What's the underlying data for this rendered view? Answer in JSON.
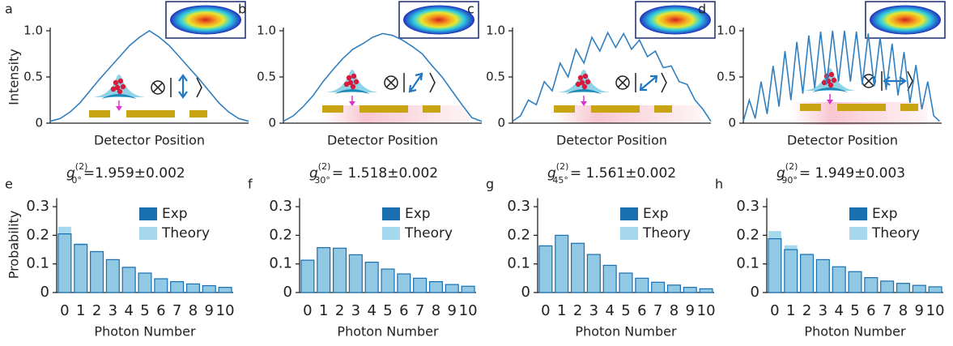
{
  "chart_data": [
    {
      "type": "line",
      "panel_label": "a",
      "ylabel": "Intensity",
      "xlabel": "Detector Position",
      "color": "#2f7fc1",
      "x": [
        0,
        5,
        10,
        15,
        20,
        25,
        30,
        35,
        40,
        45,
        50,
        55,
        60,
        65,
        70,
        75,
        80,
        85,
        90,
        95,
        100
      ],
      "series": [
        {
          "color": "#2f7fc1",
          "values": [
            0.02,
            0.05,
            0.12,
            0.22,
            0.35,
            0.48,
            0.6,
            0.72,
            0.84,
            0.93,
            1.0,
            0.93,
            0.84,
            0.72,
            0.6,
            0.48,
            0.35,
            0.22,
            0.12,
            0.05,
            0.02
          ]
        }
      ],
      "xlim": [
        0,
        100
      ],
      "ylim": [
        0,
        1
      ],
      "yticks": [
        0,
        0.5,
        {
          "value": 1,
          "label": "1.0"
        }
      ]
    },
    {
      "type": "line",
      "panel_label": "b",
      "xlabel": "Detector Position",
      "x": [
        0,
        5,
        10,
        15,
        20,
        25,
        30,
        35,
        40,
        45,
        50,
        55,
        60,
        65,
        70,
        75,
        80,
        85,
        90,
        95,
        100
      ],
      "series": [
        {
          "color": "#2f7fc1",
          "values": [
            0.02,
            0.08,
            0.18,
            0.3,
            0.45,
            0.58,
            0.7,
            0.8,
            0.86,
            0.93,
            0.97,
            0.95,
            0.9,
            0.83,
            0.75,
            0.62,
            0.5,
            0.35,
            0.2,
            0.06,
            0.02
          ]
        }
      ],
      "xlim": [
        0,
        100
      ],
      "ylim": [
        0,
        1
      ],
      "yticks": [
        0,
        0.5,
        {
          "value": 1,
          "label": "1.0"
        }
      ]
    },
    {
      "type": "line",
      "panel_label": "c",
      "xlabel": "Detector Position",
      "x": [
        0,
        4,
        8,
        12,
        16,
        20,
        24,
        28,
        32,
        36,
        40,
        44,
        48,
        52,
        56,
        60,
        64,
        68,
        72,
        76,
        80,
        84,
        88,
        92,
        96,
        100
      ],
      "series": [
        {
          "color": "#2f7fc1",
          "values": [
            0.02,
            0.08,
            0.25,
            0.2,
            0.45,
            0.35,
            0.65,
            0.5,
            0.8,
            0.65,
            0.93,
            0.78,
            0.98,
            0.82,
            0.97,
            0.8,
            0.9,
            0.72,
            0.78,
            0.6,
            0.62,
            0.45,
            0.42,
            0.25,
            0.15,
            0.02
          ]
        }
      ],
      "xlim": [
        0,
        100
      ],
      "ylim": [
        0,
        1
      ],
      "yticks": [
        0,
        0.5,
        {
          "value": 1,
          "label": "1.0"
        }
      ]
    },
    {
      "type": "line",
      "panel_label": "d",
      "xlabel": "Detector Position",
      "x": [
        0,
        3,
        6,
        9,
        12,
        15,
        18,
        21,
        24,
        27,
        30,
        33,
        36,
        39,
        42,
        45,
        48,
        51,
        54,
        57,
        60,
        63,
        66,
        69,
        72,
        75,
        78,
        81,
        84,
        87,
        90,
        93,
        96,
        99
      ],
      "series": [
        {
          "color": "#2f7fc1",
          "values": [
            0.02,
            0.25,
            0.05,
            0.45,
            0.1,
            0.62,
            0.18,
            0.78,
            0.25,
            0.88,
            0.32,
            0.95,
            0.38,
            0.99,
            0.42,
            1.0,
            0.45,
            1.0,
            0.45,
            0.99,
            0.42,
            0.97,
            0.4,
            0.93,
            0.36,
            0.86,
            0.3,
            0.77,
            0.22,
            0.63,
            0.15,
            0.45,
            0.08,
            0.02
          ]
        }
      ],
      "xlim": [
        0,
        100
      ],
      "ylim": [
        0,
        1
      ],
      "yticks": [
        0,
        0.5,
        {
          "value": 1,
          "label": "1.0"
        }
      ]
    },
    {
      "type": "bar",
      "panel_label": "e",
      "title": "g",
      "title_superscript": "(2)",
      "title_subscript": "0°",
      "title_value": "=1.959±0.002",
      "ylabel": "Probability",
      "xlabel": "Photon Number",
      "categories": [
        "0",
        "1",
        "2",
        "3",
        "4",
        "5",
        "6",
        "7",
        "8",
        "9",
        "10"
      ],
      "series": [
        {
          "name": "Exp",
          "color": "#1a6fb0",
          "values": [
            0.205,
            0.168,
            0.143,
            0.115,
            0.088,
            0.068,
            0.048,
            0.038,
            0.03,
            0.024,
            0.018
          ]
        },
        {
          "name": "Theory",
          "color": "#a6d8ee",
          "values": [
            0.23,
            0.172,
            0.145,
            0.116,
            0.09,
            0.068,
            0.05,
            0.04,
            0.031,
            0.024,
            0.019
          ]
        }
      ],
      "ylim": [
        0,
        0.33
      ],
      "yticks": [
        0,
        0.1,
        0.2,
        0.3
      ],
      "legend": "upper right"
    },
    {
      "type": "bar",
      "panel_label": "f",
      "title": "g",
      "title_superscript": "(2)",
      "title_subscript": "30°",
      "title_value": "= 1.518±0.002",
      "xlabel": "Photon Number",
      "categories": [
        "0",
        "1",
        "2",
        "3",
        "4",
        "5",
        "6",
        "7",
        "8",
        "9",
        "10"
      ],
      "series": [
        {
          "name": "Exp",
          "color": "#1a6fb0",
          "values": [
            0.113,
            0.157,
            0.155,
            0.132,
            0.106,
            0.082,
            0.065,
            0.05,
            0.038,
            0.028,
            0.022
          ]
        },
        {
          "name": "Theory",
          "color": "#a6d8ee",
          "values": [
            0.115,
            0.158,
            0.155,
            0.132,
            0.106,
            0.083,
            0.065,
            0.05,
            0.038,
            0.029,
            0.022
          ]
        }
      ],
      "ylim": [
        0,
        0.33
      ],
      "yticks": [
        0,
        0.1,
        0.2,
        0.3
      ],
      "legend": "upper right"
    },
    {
      "type": "bar",
      "panel_label": "g",
      "title": "g",
      "title_superscript": "(2)",
      "title_subscript": "45°",
      "title_value": "= 1.561±0.002",
      "xlabel": "Photon Number",
      "categories": [
        "0",
        "1",
        "2",
        "3",
        "4",
        "5",
        "6",
        "7",
        "8",
        "9",
        "10"
      ],
      "series": [
        {
          "name": "Exp",
          "color": "#1a6fb0",
          "values": [
            0.163,
            0.2,
            0.172,
            0.133,
            0.095,
            0.068,
            0.05,
            0.036,
            0.026,
            0.018,
            0.013
          ]
        },
        {
          "name": "Theory",
          "color": "#a6d8ee",
          "values": [
            0.165,
            0.2,
            0.172,
            0.133,
            0.096,
            0.069,
            0.05,
            0.036,
            0.026,
            0.018,
            0.013
          ]
        }
      ],
      "ylim": [
        0,
        0.33
      ],
      "yticks": [
        0,
        0.1,
        0.2,
        0.3
      ],
      "legend": "upper right"
    },
    {
      "type": "bar",
      "panel_label": "h",
      "title": "g",
      "title_superscript": "(2)",
      "title_subscript": "90°",
      "title_value": "= 1.949±0.003",
      "xlabel": "Photon Number",
      "categories": [
        "0",
        "1",
        "2",
        "3",
        "4",
        "5",
        "6",
        "7",
        "8",
        "9",
        "10"
      ],
      "series": [
        {
          "name": "Exp",
          "color": "#1a6fb0",
          "values": [
            0.188,
            0.15,
            0.133,
            0.115,
            0.09,
            0.073,
            0.052,
            0.04,
            0.032,
            0.025,
            0.02
          ]
        },
        {
          "name": "Theory",
          "color": "#a6d8ee",
          "values": [
            0.215,
            0.165,
            0.135,
            0.116,
            0.09,
            0.073,
            0.053,
            0.041,
            0.032,
            0.025,
            0.02
          ]
        }
      ],
      "ylim": [
        0,
        0.33
      ],
      "yticks": [
        0,
        0.1,
        0.2,
        0.3
      ],
      "legend": "upper right"
    }
  ]
}
